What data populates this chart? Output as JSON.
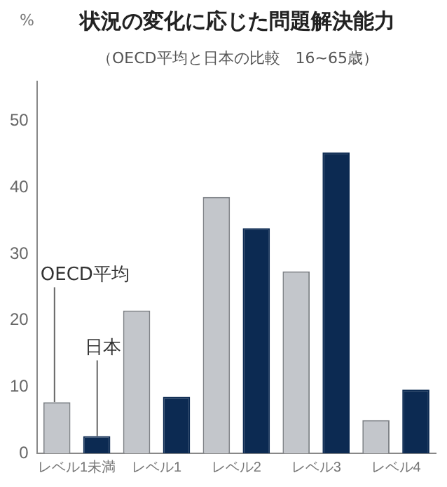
{
  "chart_data": {
    "type": "bar",
    "title": "状況の変化に応じた問題解決能力",
    "subtitle": "（OECD平均と日本の比較　16~65歳）",
    "ylabel": "%",
    "categories": [
      "レベル1未満",
      "レベル1",
      "レベル2",
      "レベル3",
      "レベル4"
    ],
    "series": [
      {
        "name": "OECD平均",
        "color": "#c3c6cb",
        "values": [
          7.7,
          21.5,
          38.6,
          27.4,
          5.0
        ]
      },
      {
        "name": "日本",
        "color": "#0c2a52",
        "values": [
          2.6,
          8.5,
          33.9,
          45.3,
          9.6
        ]
      }
    ],
    "ylim": [
      0,
      56
    ],
    "yticks": [
      0,
      10,
      20,
      30,
      40,
      50
    ],
    "grid": false,
    "legend": false
  }
}
